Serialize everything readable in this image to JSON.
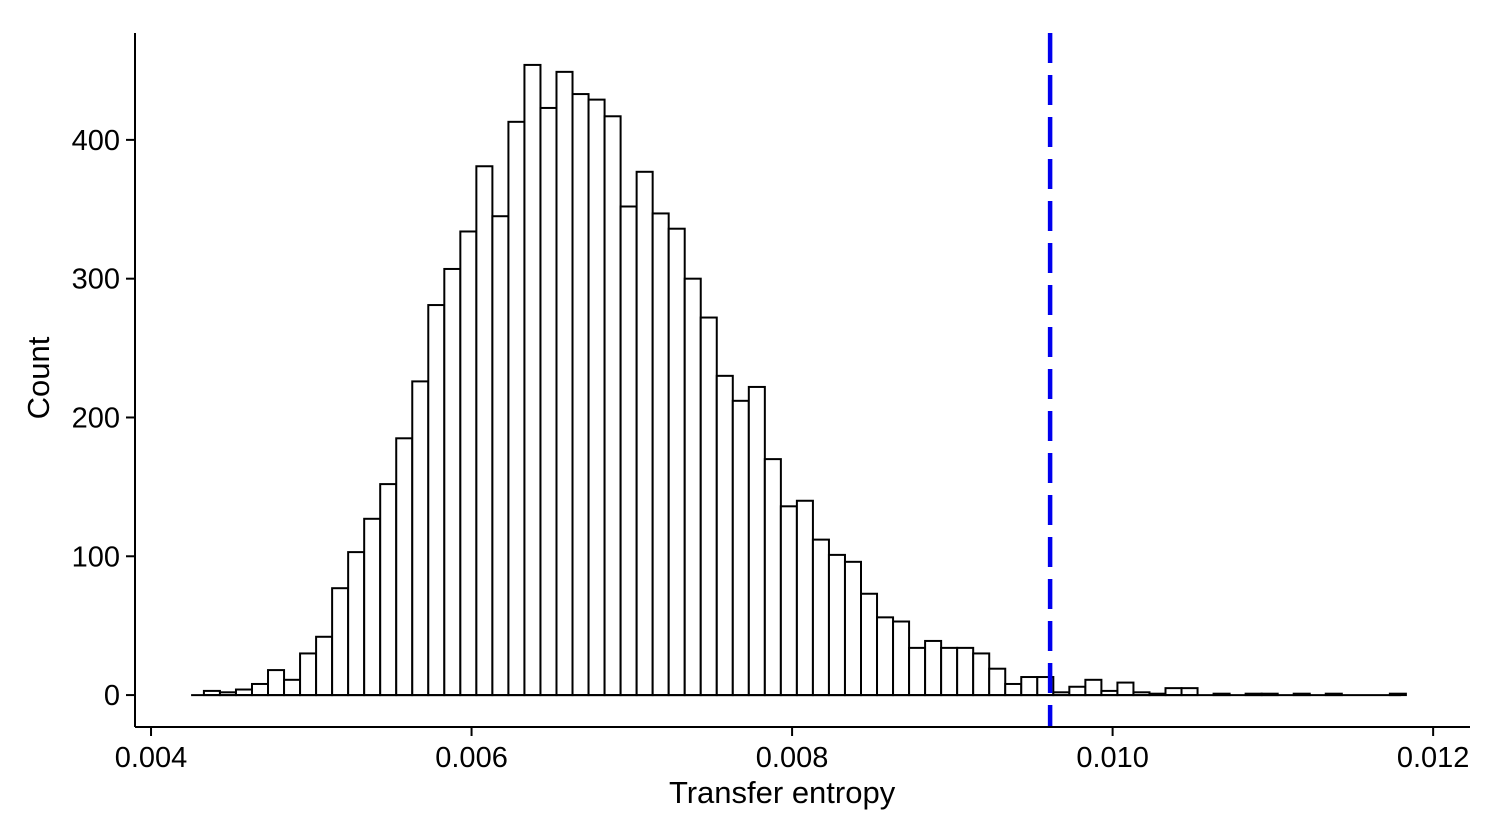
{
  "chart_data": {
    "type": "bar",
    "subtype": "histogram",
    "title": "",
    "xlabel": "Transfer entropy",
    "ylabel": "Count",
    "xlim": [
      0.0039,
      0.01223
    ],
    "ylim": [
      -23,
      477
    ],
    "x_ticks": [
      0.004,
      0.006,
      0.008,
      0.01,
      0.012
    ],
    "x_tick_labels": [
      "0.004",
      "0.006",
      "0.008",
      "0.010",
      "0.012"
    ],
    "y_ticks": [
      0,
      100,
      200,
      300,
      400
    ],
    "y_tick_labels": [
      "0",
      "100",
      "200",
      "300",
      "400"
    ],
    "baseline_x_range": [
      0.00425,
      0.0118
    ],
    "bin_start": 0.00433,
    "bin_width": 0.0001,
    "values": [
      3,
      2,
      4,
      8,
      18,
      11,
      30,
      42,
      77,
      103,
      127,
      152,
      185,
      226,
      281,
      307,
      334,
      381,
      345,
      413,
      454,
      423,
      449,
      433,
      429,
      417,
      352,
      377,
      347,
      336,
      300,
      272,
      230,
      212,
      222,
      170,
      136,
      140,
      112,
      101,
      96,
      73,
      56,
      53,
      34,
      39,
      34,
      34,
      30,
      19,
      8,
      13,
      13,
      2,
      6,
      11,
      3,
      9,
      2,
      1,
      5,
      5,
      0,
      1,
      0,
      1,
      1,
      0,
      1,
      0,
      1,
      0,
      0,
      0,
      1
    ],
    "threshold": {
      "x": 0.00961,
      "color": "#0000ee",
      "style": "dashed"
    },
    "grid": false,
    "legend": "none",
    "bar_fill": "#ffffff",
    "bar_edge": "#000000"
  }
}
